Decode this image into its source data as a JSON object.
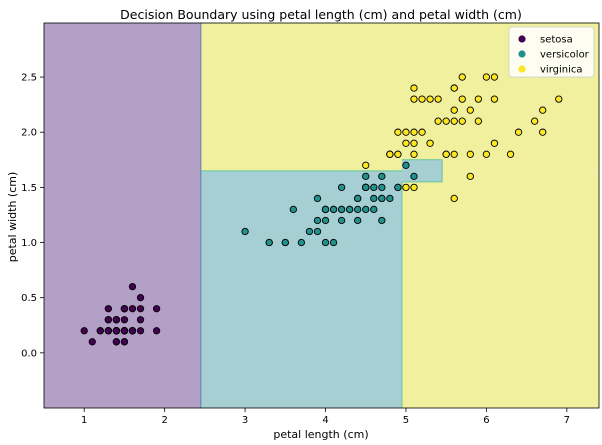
{
  "chart_data": {
    "type": "scatter",
    "title": "Decision Boundary using petal length (cm) and petal width (cm)",
    "xlabel": "petal length (cm)",
    "ylabel": "petal width (cm)",
    "xlim": [
      0.5,
      7.4
    ],
    "ylim": [
      -0.5,
      2.99
    ],
    "x_ticks": [
      1,
      2,
      3,
      4,
      5,
      6,
      7
    ],
    "y_ticks": [
      0.0,
      0.5,
      1.0,
      1.5,
      2.0,
      2.5
    ],
    "x_tick_labels": [
      "1",
      "2",
      "3",
      "4",
      "5",
      "6",
      "7"
    ],
    "y_tick_labels": [
      "0.0",
      "0.5",
      "1.0",
      "1.5",
      "2.0",
      "2.5"
    ],
    "grid": false,
    "legend_position": "top-right",
    "regions": [
      {
        "class": "setosa",
        "x": [
          0.5,
          2.45
        ],
        "y": [
          -0.5,
          2.99
        ],
        "color": "#b3a0c6"
      },
      {
        "class": "virginica",
        "x": [
          2.45,
          7.4
        ],
        "y": [
          1.65,
          2.99
        ],
        "color": "#f0f09e"
      },
      {
        "class": "virginica",
        "x": [
          4.95,
          7.4
        ],
        "y": [
          -0.5,
          1.65
        ],
        "color": "#f0f09e"
      },
      {
        "class": "versicolor",
        "x": [
          2.45,
          4.95
        ],
        "y": [
          -0.5,
          1.65
        ],
        "color": "#a5cfd2"
      },
      {
        "class": "versicolor",
        "x": [
          4.95,
          5.45
        ],
        "y": [
          1.55,
          1.75
        ],
        "color": "#a5cfd2"
      }
    ],
    "series": [
      {
        "name": "setosa",
        "color": "#440154",
        "points": [
          [
            1.4,
            0.2
          ],
          [
            1.4,
            0.2
          ],
          [
            1.3,
            0.2
          ],
          [
            1.5,
            0.2
          ],
          [
            1.4,
            0.2
          ],
          [
            1.7,
            0.4
          ],
          [
            1.4,
            0.3
          ],
          [
            1.5,
            0.2
          ],
          [
            1.4,
            0.2
          ],
          [
            1.5,
            0.1
          ],
          [
            1.5,
            0.2
          ],
          [
            1.6,
            0.2
          ],
          [
            1.4,
            0.1
          ],
          [
            1.1,
            0.1
          ],
          [
            1.2,
            0.2
          ],
          [
            1.5,
            0.4
          ],
          [
            1.3,
            0.4
          ],
          [
            1.4,
            0.3
          ],
          [
            1.7,
            0.3
          ],
          [
            1.5,
            0.3
          ],
          [
            1.7,
            0.2
          ],
          [
            1.5,
            0.4
          ],
          [
            1.0,
            0.2
          ],
          [
            1.7,
            0.5
          ],
          [
            1.9,
            0.2
          ],
          [
            1.6,
            0.2
          ],
          [
            1.6,
            0.4
          ],
          [
            1.5,
            0.2
          ],
          [
            1.4,
            0.2
          ],
          [
            1.6,
            0.2
          ],
          [
            1.6,
            0.2
          ],
          [
            1.5,
            0.4
          ],
          [
            1.5,
            0.1
          ],
          [
            1.4,
            0.2
          ],
          [
            1.5,
            0.2
          ],
          [
            1.2,
            0.2
          ],
          [
            1.3,
            0.2
          ],
          [
            1.4,
            0.1
          ],
          [
            1.3,
            0.2
          ],
          [
            1.5,
            0.2
          ],
          [
            1.3,
            0.3
          ],
          [
            1.3,
            0.3
          ],
          [
            1.3,
            0.2
          ],
          [
            1.6,
            0.6
          ],
          [
            1.9,
            0.4
          ],
          [
            1.4,
            0.3
          ],
          [
            1.6,
            0.2
          ],
          [
            1.4,
            0.2
          ],
          [
            1.5,
            0.2
          ],
          [
            1.4,
            0.2
          ]
        ]
      },
      {
        "name": "versicolor",
        "color": "#21918c",
        "points": [
          [
            4.7,
            1.4
          ],
          [
            4.5,
            1.5
          ],
          [
            4.9,
            1.5
          ],
          [
            4.0,
            1.3
          ],
          [
            4.6,
            1.5
          ],
          [
            4.5,
            1.3
          ],
          [
            4.7,
            1.6
          ],
          [
            3.3,
            1.0
          ],
          [
            4.6,
            1.3
          ],
          [
            3.9,
            1.4
          ],
          [
            3.5,
            1.0
          ],
          [
            4.2,
            1.5
          ],
          [
            4.0,
            1.0
          ],
          [
            4.7,
            1.4
          ],
          [
            3.6,
            1.3
          ],
          [
            4.4,
            1.4
          ],
          [
            4.5,
            1.5
          ],
          [
            4.1,
            1.0
          ],
          [
            4.5,
            1.5
          ],
          [
            3.9,
            1.1
          ],
          [
            4.8,
            1.8
          ],
          [
            4.0,
            1.3
          ],
          [
            4.9,
            1.5
          ],
          [
            4.7,
            1.2
          ],
          [
            4.3,
            1.3
          ],
          [
            4.4,
            1.4
          ],
          [
            4.8,
            1.4
          ],
          [
            5.0,
            1.7
          ],
          [
            4.5,
            1.5
          ],
          [
            3.5,
            1.0
          ],
          [
            3.8,
            1.1
          ],
          [
            3.7,
            1.0
          ],
          [
            3.9,
            1.2
          ],
          [
            5.1,
            1.6
          ],
          [
            4.5,
            1.5
          ],
          [
            4.5,
            1.6
          ],
          [
            4.7,
            1.5
          ],
          [
            4.4,
            1.3
          ],
          [
            4.1,
            1.3
          ],
          [
            4.0,
            1.3
          ],
          [
            4.4,
            1.2
          ],
          [
            4.6,
            1.4
          ],
          [
            4.0,
            1.2
          ],
          [
            3.3,
            1.0
          ],
          [
            4.2,
            1.3
          ],
          [
            4.2,
            1.2
          ],
          [
            4.2,
            1.3
          ],
          [
            4.3,
            1.3
          ],
          [
            3.0,
            1.1
          ],
          [
            4.1,
            1.3
          ]
        ]
      },
      {
        "name": "virginica",
        "color": "#fde725",
        "points": [
          [
            6.0,
            2.5
          ],
          [
            5.1,
            1.9
          ],
          [
            5.9,
            2.1
          ],
          [
            5.6,
            1.8
          ],
          [
            5.8,
            2.2
          ],
          [
            6.6,
            2.1
          ],
          [
            4.5,
            1.7
          ],
          [
            6.3,
            1.8
          ],
          [
            5.8,
            1.8
          ],
          [
            6.1,
            2.5
          ],
          [
            5.1,
            2.0
          ],
          [
            5.3,
            1.9
          ],
          [
            5.5,
            2.1
          ],
          [
            5.0,
            2.0
          ],
          [
            5.1,
            2.4
          ],
          [
            5.3,
            2.3
          ],
          [
            5.5,
            1.8
          ],
          [
            6.7,
            2.2
          ],
          [
            6.9,
            2.3
          ],
          [
            5.0,
            1.5
          ],
          [
            5.7,
            2.3
          ],
          [
            4.9,
            2.0
          ],
          [
            6.7,
            2.0
          ],
          [
            4.9,
            1.8
          ],
          [
            5.7,
            2.1
          ],
          [
            6.0,
            1.8
          ],
          [
            4.8,
            1.8
          ],
          [
            4.9,
            1.8
          ],
          [
            5.6,
            2.1
          ],
          [
            5.8,
            1.6
          ],
          [
            6.1,
            1.9
          ],
          [
            6.4,
            2.0
          ],
          [
            5.6,
            2.2
          ],
          [
            5.1,
            1.5
          ],
          [
            5.6,
            1.4
          ],
          [
            6.1,
            2.3
          ],
          [
            5.6,
            2.4
          ],
          [
            5.5,
            1.8
          ],
          [
            4.8,
            1.8
          ],
          [
            5.4,
            2.1
          ],
          [
            5.6,
            2.4
          ],
          [
            5.1,
            2.3
          ],
          [
            5.9,
            2.3
          ],
          [
            5.7,
            2.5
          ],
          [
            5.2,
            2.3
          ],
          [
            5.0,
            1.9
          ],
          [
            5.2,
            2.0
          ],
          [
            5.4,
            2.3
          ],
          [
            5.1,
            1.8
          ]
        ]
      }
    ],
    "axis_colors": {
      "axis": "#000000",
      "marker_edge": "#000000"
    }
  }
}
